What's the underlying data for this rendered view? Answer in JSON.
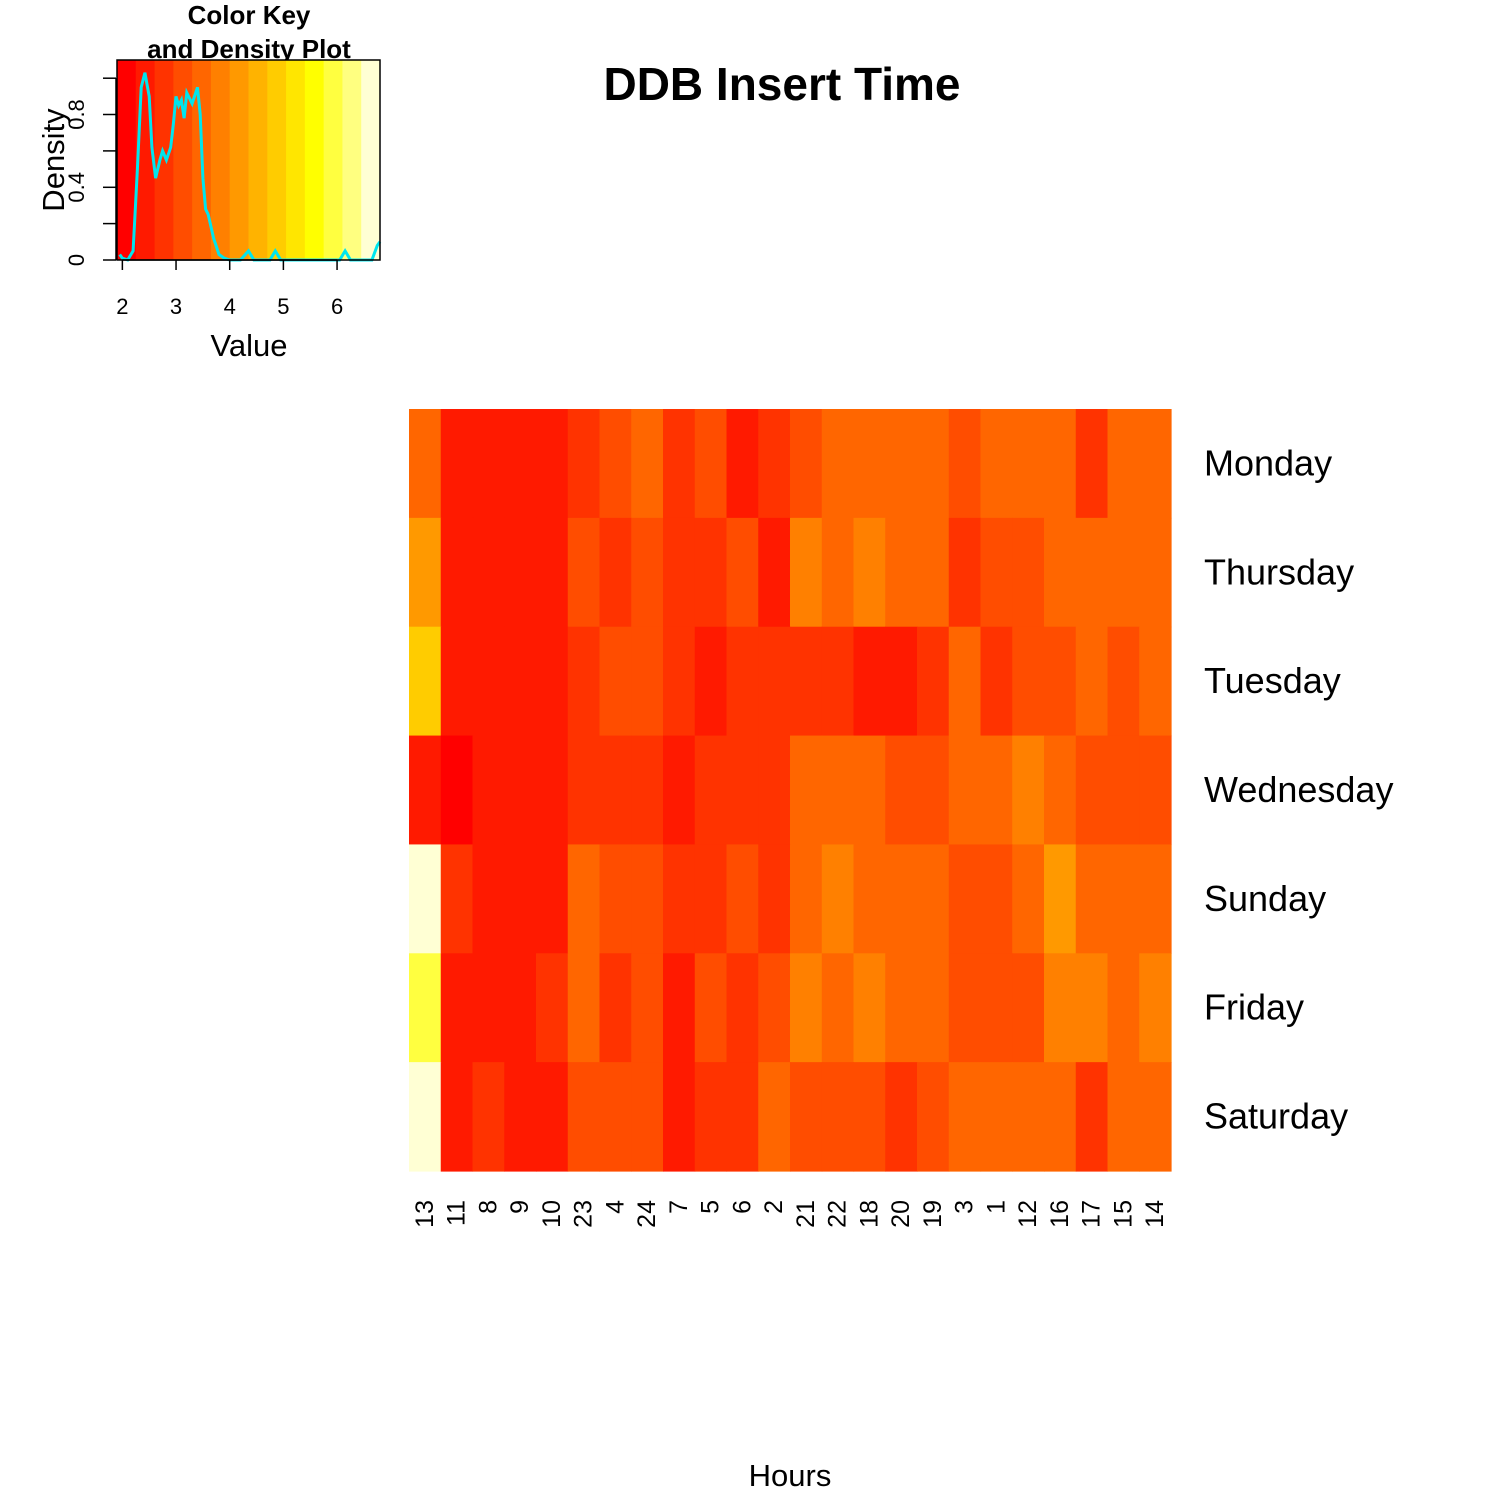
{
  "chart_data": {
    "type": "heatmap",
    "title": "DDB Insert Time",
    "xlabel": "Hours",
    "ylabel": "",
    "rows": [
      "Monday",
      "Thursday",
      "Tuesday",
      "Wednesday",
      "Sunday",
      "Friday",
      "Saturday"
    ],
    "columns": [
      "13",
      "11",
      "8",
      "9",
      "10",
      "23",
      "4",
      "24",
      "7",
      "5",
      "6",
      "2",
      "21",
      "22",
      "18",
      "20",
      "19",
      "3",
      "1",
      "12",
      "16",
      "17",
      "15",
      "14"
    ],
    "values": [
      [
        3.6,
        2.4,
        2.4,
        2.4,
        2.4,
        2.8,
        3.1,
        3.4,
        2.8,
        3.1,
        2.5,
        2.8,
        3.1,
        3.4,
        3.4,
        3.4,
        3.4,
        3.0,
        3.4,
        3.4,
        3.4,
        2.9,
        3.4,
        3.4
      ],
      [
        4.1,
        2.4,
        2.4,
        2.4,
        2.4,
        3.2,
        2.8,
        3.1,
        2.8,
        2.8,
        3.1,
        2.4,
        3.8,
        3.6,
        3.7,
        3.5,
        3.5,
        2.8,
        3.0,
        3.0,
        3.3,
        3.3,
        3.3,
        3.3
      ],
      [
        4.9,
        2.4,
        2.4,
        2.4,
        2.4,
        2.8,
        3.1,
        3.1,
        2.8,
        2.5,
        2.7,
        2.7,
        2.7,
        2.7,
        2.5,
        2.5,
        2.8,
        3.4,
        2.7,
        3.0,
        3.0,
        3.4,
        3.0,
        3.4
      ],
      [
        2.5,
        2.2,
        2.4,
        2.4,
        2.4,
        2.8,
        2.8,
        2.8,
        2.5,
        2.8,
        2.8,
        2.8,
        3.4,
        3.4,
        3.4,
        3.0,
        3.0,
        3.4,
        3.4,
        3.8,
        3.4,
        3.1,
        3.1,
        3.1
      ],
      [
        6.8,
        2.7,
        2.4,
        2.4,
        2.4,
        3.4,
        3.1,
        3.1,
        2.8,
        2.8,
        3.1,
        2.7,
        3.4,
        3.8,
        3.4,
        3.4,
        3.4,
        3.0,
        3.0,
        3.4,
        4.0,
        3.4,
        3.4,
        3.4
      ],
      [
        5.8,
        2.4,
        2.4,
        2.4,
        2.8,
        3.4,
        2.8,
        3.2,
        2.4,
        3.1,
        2.7,
        3.1,
        3.8,
        3.4,
        3.8,
        3.4,
        3.4,
        3.0,
        3.0,
        3.0,
        3.7,
        3.7,
        3.4,
        3.7
      ],
      [
        6.8,
        2.4,
        2.7,
        2.4,
        2.4,
        3.1,
        3.1,
        3.1,
        2.4,
        2.8,
        2.8,
        3.4,
        3.0,
        3.0,
        3.0,
        2.7,
        3.0,
        3.4,
        3.4,
        3.4,
        3.4,
        2.9,
        3.4,
        3.4
      ]
    ],
    "color_key": {
      "title_line1": "Color Key",
      "title_line2": "and Density Plot",
      "xlabel": "Value",
      "ylabel": "Density",
      "x_ticks": [
        "2",
        "3",
        "4",
        "5",
        "6"
      ],
      "y_ticks": [
        "0",
        "0.4",
        "0.8"
      ],
      "xlim": [
        1.9,
        6.8
      ],
      "ylim": [
        0,
        1.1
      ],
      "density_color": "#00e5ee",
      "density": [
        [
          1.95,
          0.03
        ],
        [
          2.0,
          0.01
        ],
        [
          2.1,
          0.0
        ],
        [
          2.2,
          0.05
        ],
        [
          2.28,
          0.5
        ],
        [
          2.35,
          0.95
        ],
        [
          2.42,
          1.03
        ],
        [
          2.5,
          0.9
        ],
        [
          2.55,
          0.62
        ],
        [
          2.62,
          0.45
        ],
        [
          2.7,
          0.55
        ],
        [
          2.75,
          0.6
        ],
        [
          2.82,
          0.55
        ],
        [
          2.9,
          0.62
        ],
        [
          2.95,
          0.75
        ],
        [
          3.0,
          0.9
        ],
        [
          3.05,
          0.85
        ],
        [
          3.1,
          0.88
        ],
        [
          3.15,
          0.78
        ],
        [
          3.2,
          0.92
        ],
        [
          3.3,
          0.86
        ],
        [
          3.4,
          0.95
        ],
        [
          3.45,
          0.8
        ],
        [
          3.5,
          0.45
        ],
        [
          3.55,
          0.28
        ],
        [
          3.6,
          0.25
        ],
        [
          3.7,
          0.12
        ],
        [
          3.8,
          0.03
        ],
        [
          3.9,
          0.01
        ],
        [
          4.0,
          0.0
        ],
        [
          4.2,
          0.0
        ],
        [
          4.35,
          0.05
        ],
        [
          4.45,
          0.0
        ],
        [
          4.75,
          0.0
        ],
        [
          4.85,
          0.05
        ],
        [
          4.95,
          0.0
        ],
        [
          6.05,
          0.0
        ],
        [
          6.15,
          0.05
        ],
        [
          6.25,
          0.0
        ],
        [
          6.65,
          0.0
        ],
        [
          6.75,
          0.08
        ],
        [
          6.8,
          0.1
        ]
      ]
    },
    "palette": [
      "#ff0000",
      "#ff1a00",
      "#ff3300",
      "#ff4d00",
      "#ff6600",
      "#ff8000",
      "#ff9900",
      "#ffb300",
      "#ffcc00",
      "#ffe600",
      "#ffff00",
      "#ffff40",
      "#ffff80",
      "#ffffd4"
    ]
  }
}
